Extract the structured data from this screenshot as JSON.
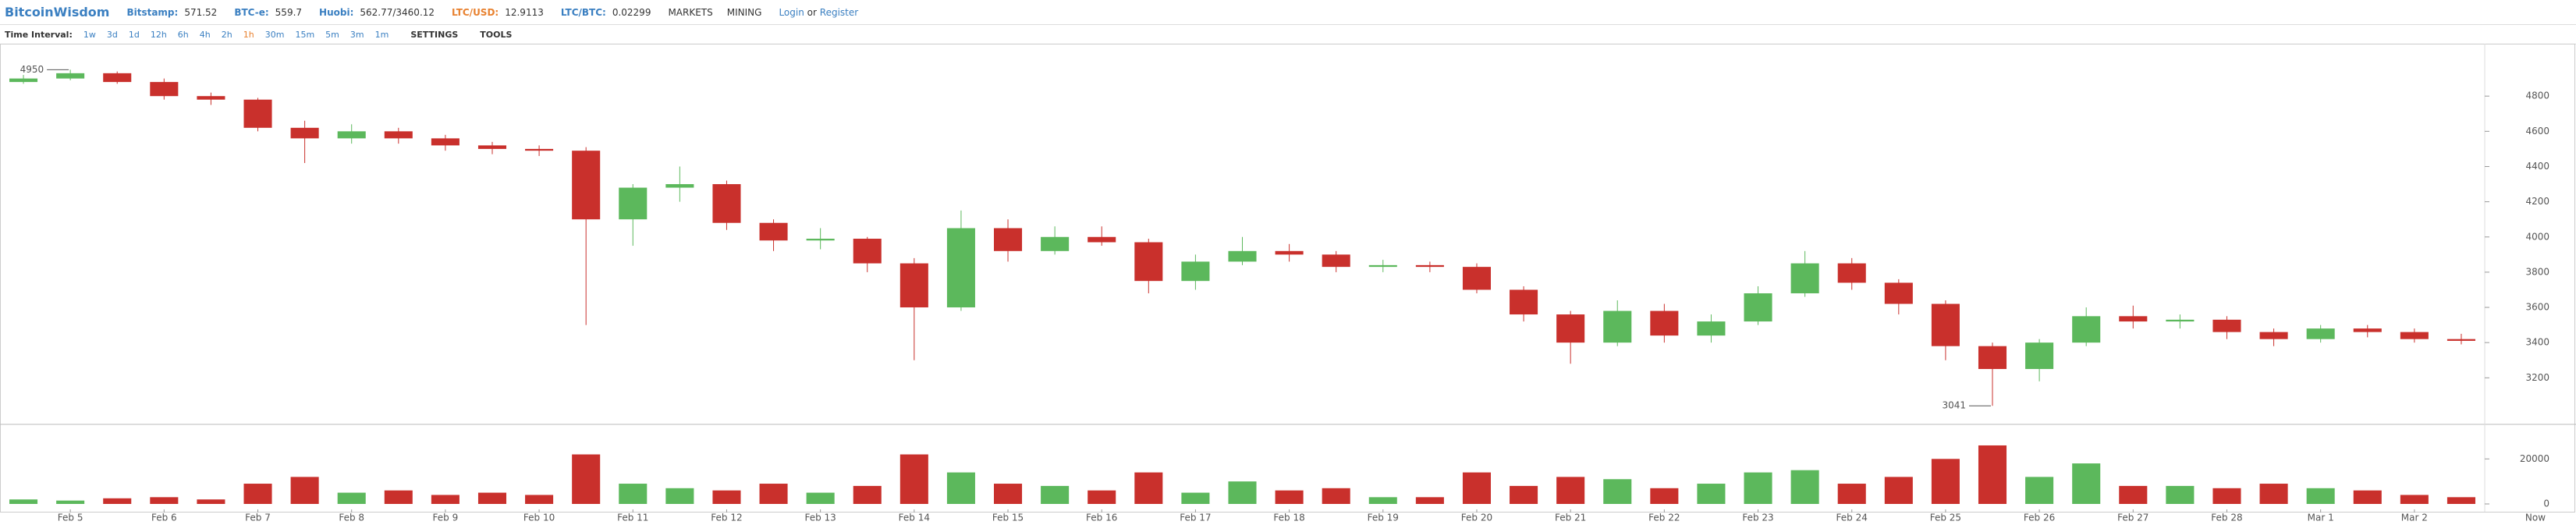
{
  "header": {
    "logo": "BitcoinWisdom",
    "tickers": [
      {
        "name": "Bitstamp:",
        "value": 571.52
      },
      {
        "name": "BTC-e:",
        "value": 559.7
      },
      {
        "name": "Huobi:",
        "value": "562.77/3460.12"
      },
      {
        "name": "LTC/USD:",
        "value": 12.9113
      },
      {
        "name": "LTC/BTC:",
        "value": 0.02299
      }
    ],
    "menus": [
      "MARKETS",
      "MINING"
    ],
    "login": "Login",
    "or": "or",
    "register": "Register"
  },
  "toolbar": {
    "label": "Time Interval:",
    "intervals": [
      "1w",
      "3d",
      "1d",
      "12h",
      "6h",
      "4h",
      "2h",
      "1h",
      "30m",
      "15m",
      "5m",
      "3m",
      "1m"
    ],
    "selected_interval": "1h",
    "menus": [
      "SETTINGS",
      "TOOLS"
    ]
  },
  "chart_data": {
    "type": "candlestick",
    "categories": [
      null,
      "Feb 5",
      null,
      "Feb 6",
      null,
      "Feb 7",
      null,
      "Feb 8",
      null,
      "Feb 9",
      null,
      "Feb 10",
      null,
      "Feb 11",
      null,
      "Feb 12",
      null,
      "Feb 13",
      null,
      "Feb 14",
      null,
      "Feb 15",
      null,
      "Feb 16",
      null,
      "Feb 17",
      null,
      "Feb 18",
      null,
      "Feb 19",
      null,
      "Feb 20",
      null,
      "Feb 21",
      null,
      "Feb 22",
      null,
      "Feb 23",
      null,
      "Feb 24",
      null,
      "Feb 25",
      null,
      "Feb 26",
      null,
      "Feb 27",
      null,
      "Feb 28",
      null,
      "Mar 1",
      null,
      "Mar 2",
      null
    ],
    "open": [
      4880,
      4900,
      4930,
      4880,
      4800,
      4780,
      4620,
      4560,
      4600,
      4560,
      4520,
      4500,
      4490,
      4100,
      4280,
      4300,
      4080,
      3980,
      3990,
      3850,
      3600,
      4050,
      3920,
      4000,
      3970,
      3750,
      3860,
      3920,
      3900,
      3830,
      3840,
      3830,
      3700,
      3560,
      3400,
      3580,
      3440,
      3520,
      3680,
      3850,
      3740,
      3620,
      3380,
      3250,
      3400,
      3550,
      3520,
      3530,
      3460,
      3420,
      3480,
      3460,
      3420
    ],
    "high": [
      4920,
      4950,
      4940,
      4900,
      4820,
      4790,
      4660,
      4640,
      4620,
      4580,
      4540,
      4520,
      4510,
      4300,
      4400,
      4320,
      4100,
      4050,
      4000,
      3880,
      4150,
      4100,
      4060,
      4060,
      3990,
      3900,
      4000,
      3960,
      3920,
      3870,
      3860,
      3850,
      3720,
      3580,
      3640,
      3620,
      3560,
      3720,
      3920,
      3880,
      3760,
      3640,
      3400,
      3420,
      3600,
      3610,
      3560,
      3550,
      3480,
      3500,
      3500,
      3480,
      3450
    ],
    "low": [
      4870,
      4890,
      4870,
      4780,
      4750,
      4600,
      4420,
      4530,
      4530,
      4490,
      4470,
      4460,
      3500,
      3950,
      4200,
      4040,
      3920,
      3930,
      3800,
      3300,
      3580,
      3860,
      3900,
      3950,
      3680,
      3700,
      3840,
      3860,
      3800,
      3800,
      3800,
      3680,
      3520,
      3280,
      3380,
      3400,
      3400,
      3500,
      3660,
      3700,
      3560,
      3300,
      3041,
      3180,
      3380,
      3480,
      3480,
      3420,
      3380,
      3400,
      3430,
      3400,
      3390
    ],
    "close": [
      4900,
      4930,
      4880,
      4800,
      4780,
      4620,
      4560,
      4600,
      4560,
      4520,
      4500,
      4490,
      4100,
      4280,
      4300,
      4080,
      3980,
      3990,
      3850,
      3600,
      4050,
      3920,
      4000,
      3970,
      3750,
      3860,
      3920,
      3900,
      3830,
      3840,
      3830,
      3700,
      3560,
      3400,
      3580,
      3440,
      3520,
      3680,
      3850,
      3740,
      3620,
      3380,
      3250,
      3400,
      3550,
      3520,
      3530,
      3460,
      3420,
      3480,
      3460,
      3420,
      3410
    ],
    "volume": [
      2000,
      1500,
      2500,
      3000,
      2000,
      9000,
      12000,
      5000,
      6000,
      4000,
      5000,
      4000,
      22000,
      9000,
      7000,
      6000,
      9000,
      5000,
      8000,
      22000,
      14000,
      9000,
      8000,
      6000,
      14000,
      5000,
      10000,
      6000,
      7000,
      3000,
      3000,
      14000,
      8000,
      12000,
      11000,
      7000,
      9000,
      14000,
      15000,
      9000,
      12000,
      20000,
      26000,
      12000,
      18000,
      8000,
      8000,
      7000,
      9000,
      7000,
      6000,
      4000,
      3000
    ],
    "up_color": "#5cb85c",
    "down_color": "#c9302c",
    "ylim": [
      2940,
      5080
    ],
    "yticks": [
      3200,
      3400,
      3600,
      3800,
      4000,
      4200,
      4400,
      4600,
      4800
    ],
    "y2lim": [
      0,
      35000
    ],
    "y2ticks": [
      0,
      20000
    ],
    "max_label": 4950,
    "min_label": 3041,
    "x_axis_end": "Now",
    "grid": false
  }
}
